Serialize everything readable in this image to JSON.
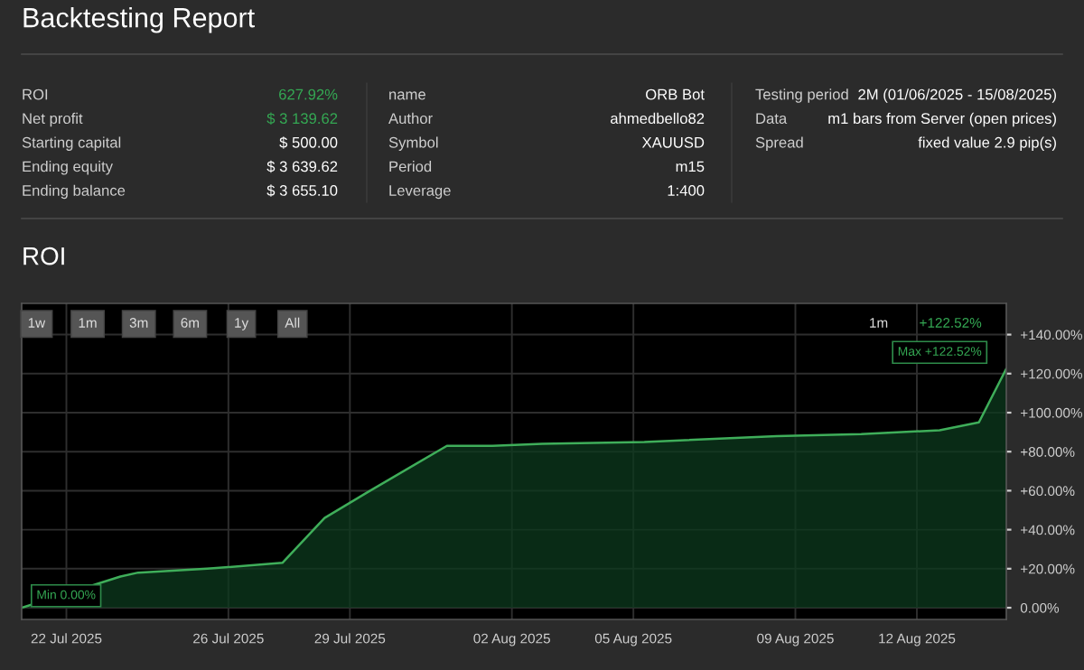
{
  "chart_data": [
    {
      "type": "other",
      "title": "Backtesting Report",
      "annotations": [
        "ROI",
        "627.92%",
        "Net profit",
        "$ 3 139.62",
        "Starting capital",
        "$ 500.00",
        "Ending equity",
        "$ 3 639.62",
        "Ending balance",
        "$ 3 655.10",
        "name",
        "ORB Bot",
        "Author",
        "ahmedbello82",
        "Symbol",
        "XAUUSD",
        "Period",
        "m15",
        "Leverage",
        "1:400",
        "Testing period",
        "2M (01/06/2025 - 15/08/2025)",
        "Data",
        "m1 bars from Server (open prices)",
        "Spread",
        "fixed value 2.9 pip(s)"
      ]
    },
    {
      "type": "area",
      "title": "ROI",
      "x": [
        "2025-07-20T21:30",
        "2025-07-23T08:00",
        "2025-07-23T18:30",
        "2025-07-25T11:30",
        "2025-07-27T08:00",
        "2025-07-28T09:00",
        "2025-07-29T10:00",
        "2025-07-31T09:30",
        "2025-08-01T12:30",
        "2025-08-02T18:00",
        "2025-08-05T06:30",
        "2025-08-08T13:00",
        "2025-08-10T15:00",
        "2025-08-12T13:30",
        "2025-08-13T12:45",
        "2025-08-14T05:00"
      ],
      "series": [
        {
          "color": "#3fae5a",
          "values": [
            0,
            16,
            18,
            20,
            23,
            46,
            59,
            83,
            83,
            84,
            85,
            88,
            89,
            91,
            95,
            122.52
          ]
        }
      ],
      "ylim": [
        -6,
        156
      ],
      "yticks": [
        {
          "value": 0,
          "label": "0.00%"
        },
        {
          "value": 20,
          "label": "+20.00%"
        },
        {
          "value": 40,
          "label": "+40.00%"
        },
        {
          "value": 60,
          "label": "+60.00%"
        },
        {
          "value": 80,
          "label": "+80.00%"
        },
        {
          "value": 100,
          "label": "+100.00%"
        },
        {
          "value": 120,
          "label": "+120.00%"
        },
        {
          "value": 140,
          "label": "+140.00%"
        }
      ],
      "xlim": [
        "2025-07-20T21:30",
        "2025-08-14T05:00"
      ],
      "xticks": [
        {
          "value": "2025-07-22T00:00",
          "label": "22 Jul 2025"
        },
        {
          "value": "2025-07-26",
          "label": "26 Jul 2025"
        },
        {
          "value": "2025-07-29T00:00",
          "label": "29 Jul 2025"
        },
        {
          "value": "2025-08-02",
          "label": "02 Aug 2025"
        },
        {
          "value": "2025-08-05T00:00",
          "label": "05 Aug 2025"
        },
        {
          "value": "2025-08-09",
          "label": "09 Aug 2025"
        },
        {
          "value": "2025-08-12T00:00",
          "label": "12 Aug 2025"
        }
      ],
      "grid": true,
      "annotations": [
        "1w",
        "1m",
        "3m",
        "6m",
        "1y",
        "All",
        "1m",
        "+122.52%",
        "Min 0.00%",
        "Max +122.52%"
      ]
    }
  ]
}
